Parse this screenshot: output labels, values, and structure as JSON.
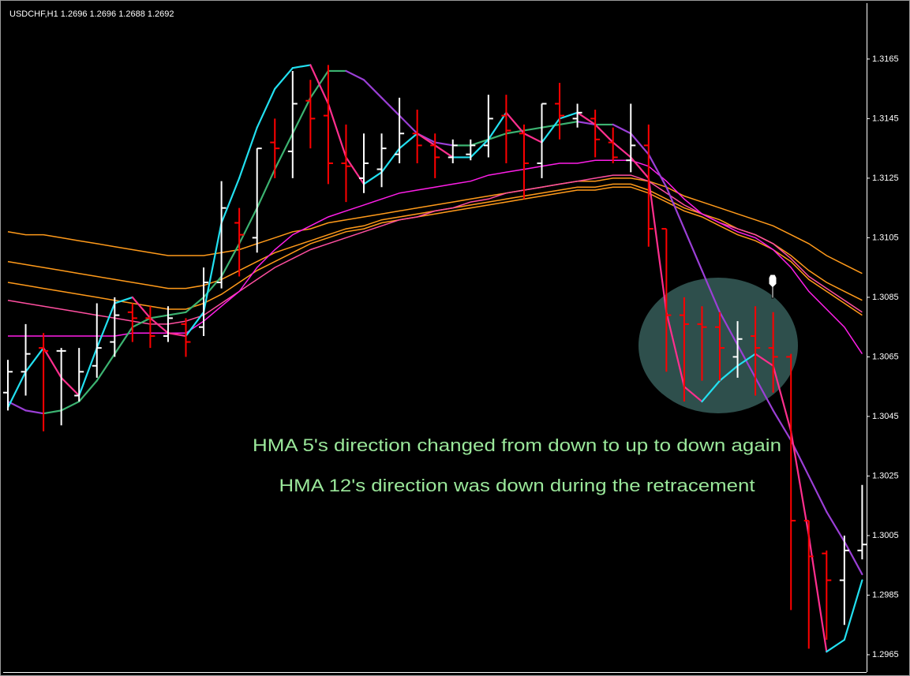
{
  "chart_data": {
    "type": "ohlc",
    "title": "USDCHF,H1  1.2696 1.2696 1.2688 1.2692",
    "annotations": [
      "HMA 5's direction changed from down to up to down again",
      "HMA 12's direction was down during the retracement"
    ],
    "categories": [
      null,
      null,
      null,
      null,
      null,
      null,
      null,
      null,
      null,
      null,
      null,
      null,
      null,
      null,
      null,
      null,
      null,
      null,
      null,
      null,
      null,
      null,
      null,
      null,
      null,
      null,
      null,
      null,
      null,
      null,
      null,
      null,
      null,
      null,
      null,
      null,
      null,
      null,
      null,
      null,
      null,
      null,
      null,
      null,
      null,
      null,
      null,
      null,
      null
    ],
    "open": [
      1.3053,
      1.306,
      1.3068,
      1.3067,
      1.3052,
      1.3062,
      1.307,
      1.308,
      1.3078,
      1.3072,
      1.3076,
      1.3075,
      1.309,
      1.311,
      1.3105,
      1.3137,
      1.3134,
      1.3151,
      1.3146,
      1.313,
      1.3125,
      1.3128,
      1.3133,
      1.314,
      1.3136,
      1.3132,
      1.3133,
      1.3136,
      1.3146,
      1.314,
      1.313,
      1.315,
      1.3145,
      1.3145,
      1.3137,
      1.3131,
      1.3136,
      1.3108,
      1.3079,
      1.3076,
      1.3075,
      1.3065,
      1.3072,
      1.3068,
      1.3065,
      1.301,
      1.2999,
      1.299,
      1.3
    ],
    "high": [
      1.3064,
      1.3076,
      1.3073,
      1.3068,
      1.3068,
      1.3083,
      1.3085,
      1.3083,
      1.3082,
      1.3082,
      1.3078,
      1.3095,
      1.3124,
      1.3115,
      1.3135,
      1.3145,
      1.3161,
      1.3158,
      1.3163,
      1.3143,
      1.314,
      1.314,
      1.3152,
      1.3148,
      1.314,
      1.3138,
      1.3138,
      1.3153,
      1.3153,
      1.3143,
      1.315,
      1.3157,
      1.315,
      1.3148,
      1.3142,
      1.315,
      1.3143,
      1.3108,
      1.3085,
      1.3082,
      1.308,
      1.3077,
      1.3082,
      1.308,
      1.3066,
      1.301,
      1.3,
      1.3005,
      1.3022
    ],
    "low": [
      1.3047,
      1.3052,
      1.304,
      1.3042,
      1.305,
      1.3058,
      1.3065,
      1.307,
      1.3068,
      1.307,
      1.3065,
      1.3072,
      1.3088,
      1.3092,
      1.31,
      1.3125,
      1.3125,
      1.3135,
      1.3123,
      1.3117,
      1.312,
      1.3122,
      1.313,
      1.313,
      1.3125,
      1.313,
      1.3131,
      1.3132,
      1.313,
      1.3118,
      1.3125,
      1.3138,
      1.3142,
      1.3132,
      1.313,
      1.3127,
      1.3102,
      1.306,
      1.305,
      1.3057,
      1.3057,
      1.3058,
      1.3052,
      1.3053,
      1.298,
      1.2967,
      1.297,
      1.2975,
      1.2997
    ],
    "close": [
      1.306,
      1.3066,
      1.3067,
      1.3067,
      1.306,
      1.3068,
      1.3079,
      1.3078,
      1.3072,
      1.3078,
      1.307,
      1.309,
      1.3115,
      1.3106,
      1.3135,
      1.3135,
      1.315,
      1.3145,
      1.313,
      1.3129,
      1.313,
      1.3135,
      1.314,
      1.3136,
      1.3132,
      1.3136,
      1.3136,
      1.3145,
      1.3141,
      1.313,
      1.315,
      1.3146,
      1.3147,
      1.3138,
      1.3132,
      1.3136,
      1.3108,
      1.3079,
      1.3076,
      1.3075,
      1.3068,
      1.3071,
      1.3068,
      1.3065,
      1.301,
      1.2998,
      1.299,
      1.3,
      1.3002
    ],
    "up_color": "#ffffff",
    "down_color": "#ff0000",
    "series": [
      {
        "color": "#ff9a1a",
        "values": [
          1.3107,
          1.3106,
          1.3106,
          1.3105,
          1.3104,
          1.3103,
          1.3102,
          1.3101,
          1.31,
          1.3099,
          1.3099,
          1.3099,
          1.31,
          1.3101,
          1.3103,
          1.3105,
          1.3107,
          1.3108,
          1.311,
          1.3111,
          1.3112,
          1.3113,
          1.3114,
          1.3115,
          1.3116,
          1.3117,
          1.3118,
          1.3119,
          1.312,
          1.3121,
          1.3122,
          1.3123,
          1.3124,
          1.3124,
          1.3125,
          1.3125,
          1.3124,
          1.3122,
          1.3119,
          1.3117,
          1.3115,
          1.3113,
          1.3111,
          1.3109,
          1.3106,
          1.3103,
          1.3099,
          1.3096,
          1.3093
        ]
      },
      {
        "color": "#ff9a1a",
        "values": [
          1.3097,
          1.3096,
          1.3095,
          1.3094,
          1.3093,
          1.3092,
          1.3091,
          1.309,
          1.3089,
          1.3088,
          1.3088,
          1.3089,
          1.3091,
          1.3094,
          1.3097,
          1.31,
          1.3102,
          1.3104,
          1.3106,
          1.3108,
          1.3109,
          1.3111,
          1.3112,
          1.3113,
          1.3114,
          1.3115,
          1.3116,
          1.3117,
          1.3118,
          1.3119,
          1.312,
          1.3121,
          1.3122,
          1.3122,
          1.3123,
          1.3123,
          1.3121,
          1.3118,
          1.3115,
          1.3113,
          1.3111,
          1.3108,
          1.3106,
          1.3103,
          1.3099,
          1.3094,
          1.309,
          1.3087,
          1.3084
        ]
      },
      {
        "color": "#ff9a1a",
        "values": [
          1.309,
          1.3089,
          1.3088,
          1.3087,
          1.3086,
          1.3085,
          1.3084,
          1.3083,
          1.3082,
          1.3081,
          1.3081,
          1.3083,
          1.3086,
          1.309,
          1.3094,
          1.3097,
          1.31,
          1.3103,
          1.3105,
          1.3107,
          1.3108,
          1.311,
          1.3111,
          1.3112,
          1.3113,
          1.3114,
          1.3115,
          1.3116,
          1.3117,
          1.3118,
          1.3119,
          1.312,
          1.3121,
          1.3121,
          1.3122,
          1.3122,
          1.312,
          1.3117,
          1.3114,
          1.3112,
          1.3109,
          1.3106,
          1.3104,
          1.3101,
          1.3097,
          1.3091,
          1.3087,
          1.3083,
          1.3079
        ]
      },
      {
        "color": "#ff4fa0",
        "values": [
          1.3084,
          1.3083,
          1.3082,
          1.3081,
          1.308,
          1.3079,
          1.3078,
          1.3077,
          1.3076,
          1.3076,
          1.3077,
          1.3079,
          1.3083,
          1.3087,
          1.3091,
          1.3095,
          1.3098,
          1.3101,
          1.3103,
          1.3105,
          1.3107,
          1.3109,
          1.3111,
          1.3112,
          1.3114,
          1.3115,
          1.3117,
          1.3118,
          1.312,
          1.3121,
          1.3122,
          1.3123,
          1.3124,
          1.3125,
          1.3126,
          1.3126,
          1.3124,
          1.312,
          1.3116,
          1.3113,
          1.311,
          1.3108,
          1.3106,
          1.3103,
          1.3098,
          1.3092,
          1.3088,
          1.3084,
          1.308
        ]
      },
      {
        "color": "#ff1ee8",
        "values": [
          1.3072,
          1.3072,
          1.3072,
          1.3072,
          1.3072,
          1.3072,
          1.3072,
          1.3073,
          1.3073,
          1.3073,
          1.3073,
          1.3077,
          1.3082,
          1.3087,
          1.3095,
          1.3101,
          1.3106,
          1.3109,
          1.3112,
          1.3114,
          1.3116,
          1.3118,
          1.312,
          1.3121,
          1.3122,
          1.3123,
          1.3124,
          1.3126,
          1.3127,
          1.3128,
          1.3129,
          1.313,
          1.313,
          1.3131,
          1.3131,
          1.3131,
          1.3129,
          1.3124,
          1.3118,
          1.3113,
          1.311,
          1.3107,
          1.3105,
          1.3101,
          1.3095,
          1.3087,
          1.3081,
          1.3075,
          1.3066
        ]
      },
      {
        "up_color": "#3cb371",
        "down_color": "#9b3fd6",
        "values": [
          1.305,
          1.3047,
          1.3046,
          1.3047,
          1.305,
          1.3057,
          1.3066,
          1.3075,
          1.3078,
          1.3079,
          1.308,
          1.3085,
          1.3092,
          1.3103,
          1.3115,
          1.3128,
          1.314,
          1.3152,
          1.3161,
          1.3161,
          1.3158,
          1.3152,
          1.3146,
          1.314,
          1.3137,
          1.3136,
          1.3136,
          1.3138,
          1.314,
          1.3141,
          1.3142,
          1.3143,
          1.3144,
          1.3143,
          1.3143,
          1.314,
          1.3133,
          1.3122,
          1.3108,
          1.3094,
          1.308,
          1.3069,
          1.3058,
          1.3047,
          1.3037,
          1.3025,
          1.3013,
          1.3003,
          1.2992
        ]
      },
      {
        "up_color": "#22e0f0",
        "down_color": "#ff2f8e",
        "values": [
          1.3048,
          1.306,
          1.3068,
          1.3058,
          1.3052,
          1.3068,
          1.3083,
          1.3085,
          1.3078,
          1.3073,
          1.3072,
          1.308,
          1.311,
          1.3125,
          1.3142,
          1.3155,
          1.3162,
          1.3163,
          1.315,
          1.3132,
          1.3123,
          1.3127,
          1.3135,
          1.314,
          1.3136,
          1.3132,
          1.3132,
          1.3138,
          1.3147,
          1.314,
          1.3137,
          1.3145,
          1.3147,
          1.3143,
          1.3137,
          1.3132,
          1.3125,
          1.308,
          1.3055,
          1.305,
          1.3057,
          1.3062,
          1.3066,
          1.3062,
          1.304,
          1.3005,
          1.2966,
          1.297,
          1.299
        ]
      }
    ],
    "ylim": [
      1.29597,
      1.31835
    ],
    "yticks": [
      1.2965,
      1.2985,
      1.3005,
      1.3025,
      1.3045,
      1.3065,
      1.3085,
      1.3105,
      1.3125,
      1.3145,
      1.3165
    ]
  }
}
